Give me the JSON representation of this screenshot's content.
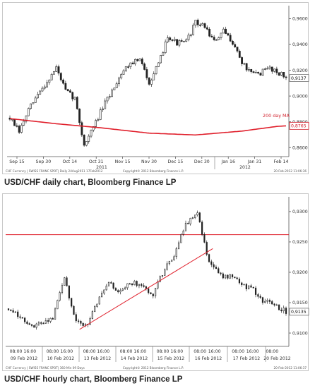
{
  "chart_data": [
    {
      "type": "candlestick",
      "title": "",
      "caption": "USD/CHF daily chart, Bloomberg Finance LP",
      "header_left": "CHF Currency  |  SWISS FRANC SPOT|  Daily 24Aug2011  17Feb2012",
      "footer": "Copyright© 2012 Bloomberg Finance L.P.",
      "footer_right": "20-Feb-2012 11:06:36",
      "x_ticks": [
        "Sep 15",
        "Sep 30",
        "Oct 14",
        "Oct 31",
        "Nov 15",
        "Nov 30",
        "Dec 15",
        "Dec 30",
        "Jan 16",
        "Jan 31",
        "Feb 14"
      ],
      "x_year_labels": [
        "2011",
        "2012"
      ],
      "y_ticks": [
        "0,9600",
        "0,9400",
        "0,9200",
        "0,9000",
        "0,8800",
        "0,8600"
      ],
      "ylim": [
        0.853,
        0.969
      ],
      "last_price_label": "0,9137",
      "ma_value_label": "0,8765",
      "ma_label": "200 day MA",
      "grid": false,
      "series": [
        {
          "name": "200 day MA",
          "color": "#e0202c",
          "x": [
            0,
            20,
            40,
            60,
            80,
            100,
            115,
            120
          ],
          "values": [
            0.8825,
            0.8785,
            0.8752,
            0.8712,
            0.8698,
            0.8728,
            0.8764,
            0.877
          ]
        },
        {
          "name": "Price",
          "color": "#222222",
          "x": [
            0,
            4,
            8,
            12,
            16,
            20,
            24,
            28,
            32,
            36,
            40,
            44,
            48,
            52,
            56,
            60,
            64,
            68,
            72,
            76,
            80,
            84,
            88,
            92,
            96,
            100,
            104,
            108,
            112,
            116,
            119
          ],
          "values": [
            0.883,
            0.872,
            0.889,
            0.901,
            0.911,
            0.922,
            0.904,
            0.898,
            0.862,
            0.876,
            0.891,
            0.904,
            0.918,
            0.926,
            0.928,
            0.911,
            0.924,
            0.947,
            0.941,
            0.942,
            0.957,
            0.954,
            0.942,
            0.95,
            0.942,
            0.926,
            0.917,
            0.918,
            0.922,
            0.918,
            0.914
          ]
        }
      ]
    },
    {
      "type": "candlestick",
      "title": "",
      "caption": "USD/CHF hourly chart, Bloomberg Finance LP",
      "header_left": "CHF Currency  |  SWISS FRANC SPOT|  360 Min 09 Days",
      "footer": "Copyright© 2012 Bloomberg Finance L.P.",
      "footer_right": "20-Feb-2012 11:06:37",
      "x_ticks": [
        "08:00",
        "16:00",
        "08:00",
        "16:00",
        "08:00",
        "16:00",
        "08:00",
        "16:00",
        "08:00",
        "16:00",
        "08:00",
        "16:00",
        "08:00",
        "16:00",
        "08:00"
      ],
      "x_date_labels": [
        "09 Feb 2012",
        "10 Feb 2012",
        "13 Feb 2012",
        "14 Feb 2012",
        "15 Feb 2012",
        "16 Feb 2012",
        "17 Feb 2012",
        "20 Feb 2012"
      ],
      "y_ticks": [
        "0,9300",
        "0,9250",
        "0,9200",
        "0,9150",
        "0,9100"
      ],
      "ylim": [
        0.9078,
        0.9315
      ],
      "last_price_label": "0,9135",
      "horizontal_line": 0.9262,
      "trend_line": {
        "x": [
          12.8,
          36.8
        ],
        "values": [
          0.9106,
          0.9239
        ]
      },
      "grid": false,
      "series": [
        {
          "name": "Price",
          "color": "#222222",
          "x": [
            0,
            2,
            4,
            6,
            8,
            10,
            12,
            14,
            16,
            18,
            20,
            22,
            24,
            26,
            28,
            30,
            32,
            34,
            36,
            38,
            40,
            42,
            44,
            46,
            48,
            50
          ],
          "values": [
            0.914,
            0.9128,
            0.911,
            0.9118,
            0.9124,
            0.9192,
            0.9125,
            0.911,
            0.9152,
            0.9185,
            0.9165,
            0.9184,
            0.9178,
            0.9164,
            0.9204,
            0.9232,
            0.928,
            0.9296,
            0.9222,
            0.9196,
            0.9192,
            0.918,
            0.9172,
            0.9152,
            0.9146,
            0.9135
          ]
        }
      ]
    }
  ]
}
